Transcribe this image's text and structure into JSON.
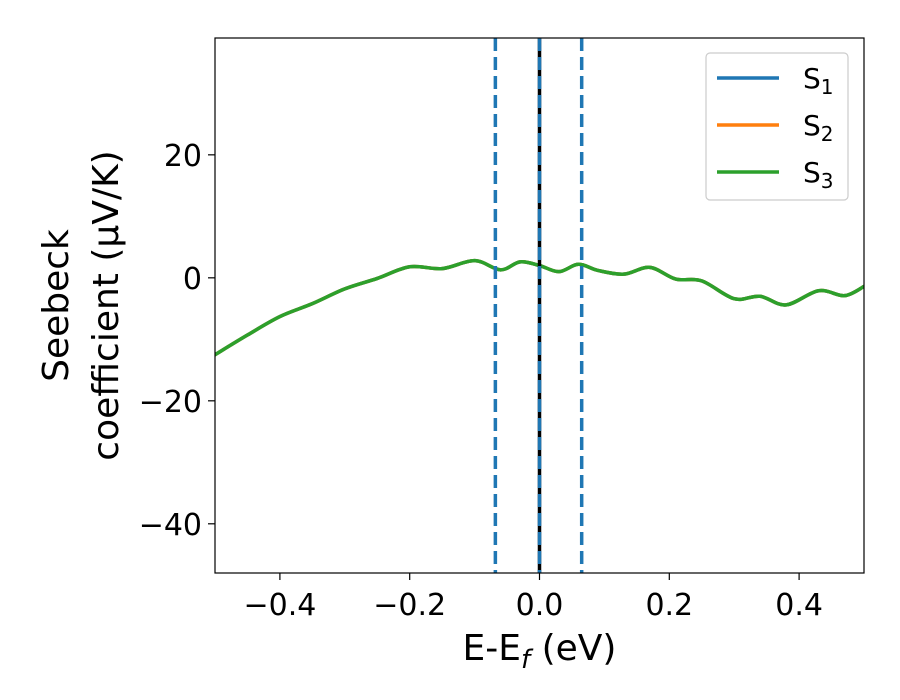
{
  "chart_data": {
    "type": "line",
    "xlabel_parts": [
      "E-E",
      "f",
      " (eV)"
    ],
    "ylabel_lines": [
      "Seebeck",
      "coefficient  (μV/K)"
    ],
    "xlim": [
      -0.5,
      0.5
    ],
    "ylim": [
      -48,
      39
    ],
    "xticks": [
      -0.4,
      -0.2,
      0.0,
      0.2,
      0.4
    ],
    "xtick_labels": [
      "−0.4",
      "−0.2",
      "0.0",
      "0.2",
      "0.4"
    ],
    "yticks": [
      -40,
      -20,
      0,
      20
    ],
    "ytick_labels": [
      "−40",
      "−20",
      "0",
      "20"
    ],
    "grid": false,
    "legend_position": "top-right",
    "series": [
      {
        "name": "S",
        "sub": "1",
        "color": "#1f77b4",
        "x": [
          -0.5,
          -0.45,
          -0.4,
          -0.35,
          -0.3,
          -0.25,
          -0.2,
          -0.15,
          -0.1,
          -0.06,
          -0.03,
          0.0,
          0.03,
          0.06,
          0.09,
          0.13,
          0.17,
          0.21,
          0.25,
          0.3,
          0.34,
          0.38,
          0.43,
          0.47,
          0.5
        ],
        "y": [
          -12.5,
          -9.3,
          -6.3,
          -4.2,
          -1.8,
          -0.1,
          1.8,
          1.5,
          2.8,
          1.3,
          2.6,
          2.0,
          1.0,
          2.2,
          1.2,
          0.6,
          1.7,
          -0.2,
          -0.5,
          -3.4,
          -3.0,
          -4.4,
          -2.1,
          -2.9,
          -1.4
        ]
      },
      {
        "name": "S",
        "sub": "2",
        "color": "#ff7f0e",
        "x": [
          -0.5,
          -0.45,
          -0.4,
          -0.35,
          -0.3,
          -0.25,
          -0.2,
          -0.15,
          -0.1,
          -0.06,
          -0.03,
          0.0,
          0.03,
          0.06,
          0.09,
          0.13,
          0.17,
          0.21,
          0.25,
          0.3,
          0.34,
          0.38,
          0.43,
          0.47,
          0.5
        ],
        "y": [
          -12.5,
          -9.3,
          -6.3,
          -4.2,
          -1.8,
          -0.1,
          1.8,
          1.5,
          2.8,
          1.3,
          2.6,
          2.0,
          1.0,
          2.2,
          1.2,
          0.6,
          1.7,
          -0.2,
          -0.5,
          -3.4,
          -3.0,
          -4.4,
          -2.1,
          -2.9,
          -1.4
        ]
      },
      {
        "name": "S",
        "sub": "3",
        "color": "#2ca02c",
        "x": [
          -0.5,
          -0.45,
          -0.4,
          -0.35,
          -0.3,
          -0.25,
          -0.2,
          -0.15,
          -0.1,
          -0.06,
          -0.03,
          0.0,
          0.03,
          0.06,
          0.09,
          0.13,
          0.17,
          0.21,
          0.25,
          0.3,
          0.34,
          0.38,
          0.43,
          0.47,
          0.5
        ],
        "y": [
          -12.5,
          -9.3,
          -6.3,
          -4.2,
          -1.8,
          -0.1,
          1.8,
          1.5,
          2.8,
          1.3,
          2.6,
          2.0,
          1.0,
          2.2,
          1.2,
          0.6,
          1.7,
          -0.2,
          -0.5,
          -3.4,
          -3.0,
          -4.4,
          -2.1,
          -2.9,
          -1.4
        ]
      }
    ],
    "vlines": [
      {
        "x": 0.0,
        "color": "#000000",
        "style": "solid"
      },
      {
        "x": -0.068,
        "color": "#1f77b4",
        "style": "dashed"
      },
      {
        "x": 0.0,
        "color": "#1f77b4",
        "style": "dashed"
      },
      {
        "x": 0.065,
        "color": "#1f77b4",
        "style": "dashed"
      }
    ]
  }
}
